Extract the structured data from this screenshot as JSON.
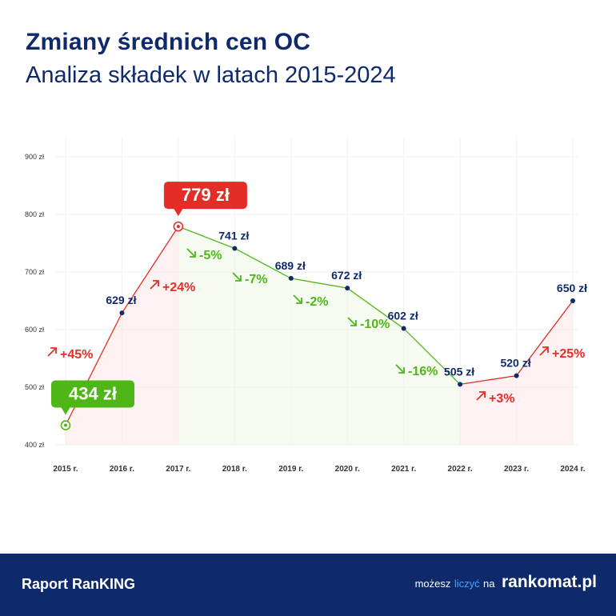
{
  "header": {
    "title": "Zmiany średnich cen OC",
    "subtitle": "Analiza składek w latach 2015-2024"
  },
  "footer": {
    "report_title": "Raport RanKING",
    "tagline_prefix": "możesz",
    "tagline_highlight": "liczyć",
    "tagline_suffix": "na",
    "brand": "rankomat.pl"
  },
  "colors": {
    "navy": "#0f2a6b",
    "increase": "#e52d27",
    "decrease": "#4fb617",
    "accent_blue": "#3ea7ff"
  },
  "chart_data": {
    "type": "line",
    "title": "Zmiany średnich cen OC",
    "subtitle": "Analiza składek w latach 2015-2024",
    "x": [
      "2015 r.",
      "2016 r.",
      "2017 r.",
      "2018 r.",
      "2019 r.",
      "2020 r.",
      "2021 r.",
      "2022 r.",
      "2023 r.",
      "2024 r."
    ],
    "values": [
      434,
      629,
      779,
      741,
      689,
      672,
      602,
      505,
      520,
      650
    ],
    "point_labels": [
      "434 zł",
      "629 zł",
      "779 zł",
      "741 zł",
      "689 zł",
      "672 zł",
      "602 zł",
      "505 zł",
      "520 zł",
      "650 zł"
    ],
    "changes": [
      "+45%",
      "+24%",
      "-5%",
      "-7%",
      "-2%",
      "-10%",
      "-16%",
      "+3%",
      "+25%"
    ],
    "change_direction": [
      "up",
      "up",
      "down",
      "down",
      "down",
      "down",
      "down",
      "up",
      "up"
    ],
    "ylim": [
      400,
      900
    ],
    "yticks": [
      400,
      500,
      600,
      700,
      800,
      900
    ],
    "ytick_labels": [
      "400 zł",
      "500 zł",
      "600 zł",
      "700 zł",
      "800 zł",
      "900 zł"
    ],
    "highlighted": [
      {
        "index": 0,
        "label": "434 zł",
        "color": "#4fb617"
      },
      {
        "index": 2,
        "label": "779 zł",
        "color": "#e52d27"
      }
    ],
    "grid": true,
    "legend": "none"
  }
}
